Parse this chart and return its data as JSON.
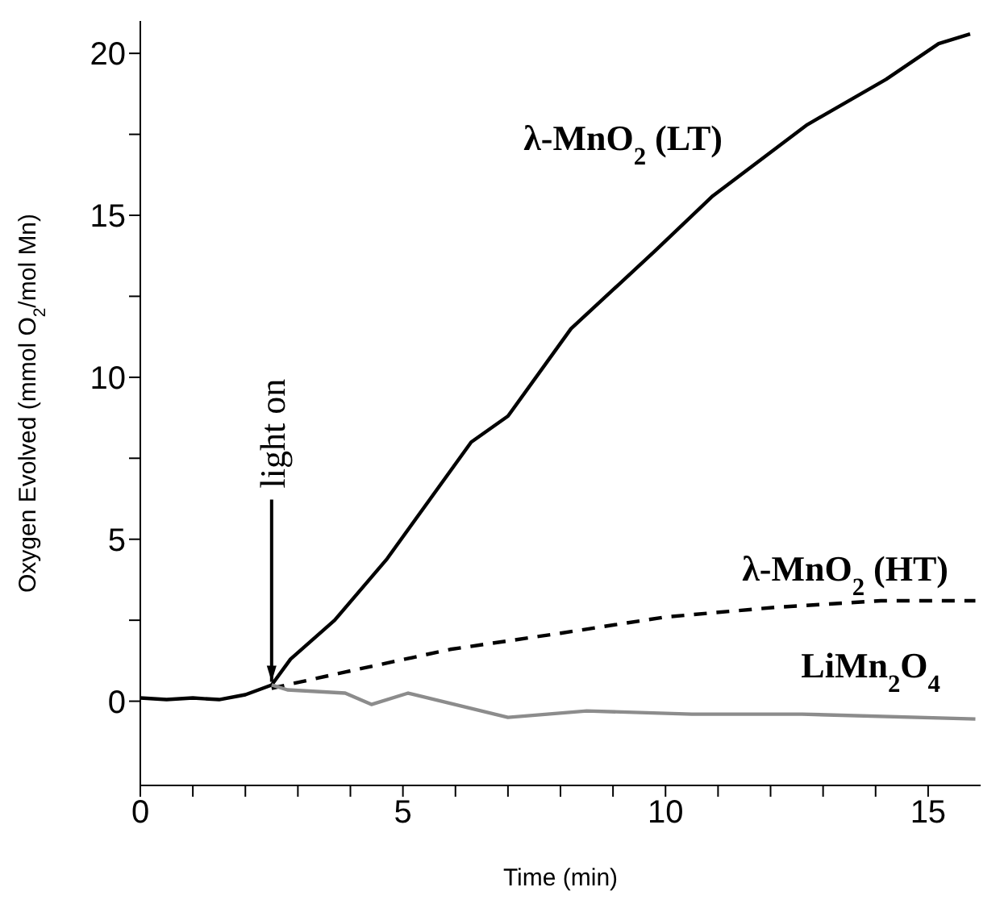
{
  "chart_data": {
    "type": "line",
    "xlabel": "Time (min)",
    "ylabel": "Oxygen Evolved (mmol O$_{2}$/mol Mn)",
    "xlim": [
      0,
      16
    ],
    "ylim": [
      -2.6,
      21
    ],
    "xticks": [
      0,
      {
        "value": 1,
        "label": null
      },
      {
        "value": 2,
        "label": null
      },
      {
        "value": 3,
        "label": null
      },
      {
        "value": 4,
        "label": null
      },
      5,
      {
        "value": 6,
        "label": null
      },
      {
        "value": 7,
        "label": null
      },
      {
        "value": 8,
        "label": null
      },
      {
        "value": 9,
        "label": null
      },
      10,
      {
        "value": 11,
        "label": null
      },
      {
        "value": 12,
        "label": null
      },
      {
        "value": 13,
        "label": null
      },
      {
        "value": 14,
        "label": null
      },
      15
    ],
    "yticks": [
      0,
      {
        "value": 2.5,
        "label": null
      },
      5,
      {
        "value": 7.5,
        "label": null
      },
      10,
      {
        "value": 12.5,
        "label": null
      },
      15,
      {
        "value": 17.5,
        "label": null
      },
      20
    ],
    "marker": "none",
    "annotations": [
      {
        "text": "light on",
        "x": 2.5,
        "y": 0.5
      }
    ],
    "series": [
      {
        "name": "λ-MnO$_{2}$ (LT)",
        "color": "#000000",
        "line_style": "solid",
        "x": [
          0,
          0.5,
          1,
          1.5,
          2,
          2.5,
          2.86,
          3.7,
          4.7,
          5.5,
          6.3,
          7.0,
          8.2,
          9.8,
          10.9,
          12.7,
          14.2,
          15.2,
          15.8
        ],
        "values": [
          0.1,
          0.05,
          0.1,
          0.05,
          0.2,
          0.5,
          1.3,
          2.5,
          4.4,
          6.2,
          8.0,
          8.8,
          11.5,
          13.9,
          15.6,
          17.8,
          19.2,
          20.3,
          20.6
        ]
      },
      {
        "name": "λ-MnO$_{2}$ (HT)",
        "color": "#000000",
        "line_style": "dashed",
        "x": [
          2.5,
          3.9,
          5.9,
          8.0,
          10.0,
          12.1,
          14.1,
          15.9
        ],
        "values": [
          0.4,
          0.9,
          1.6,
          2.1,
          2.6,
          2.9,
          3.1,
          3.1
        ]
      },
      {
        "name": "LiMn$_{2}$O$_{4}$",
        "color": "#8c8c8c",
        "line_style": "solid",
        "x": [
          2.5,
          2.8,
          3.9,
          4.4,
          5.1,
          7.0,
          8.5,
          10.5,
          12.6,
          15.9
        ],
        "values": [
          0.5,
          0.35,
          0.25,
          -0.1,
          0.25,
          -0.5,
          -0.3,
          -0.4,
          -0.4,
          -0.55
        ]
      }
    ]
  }
}
